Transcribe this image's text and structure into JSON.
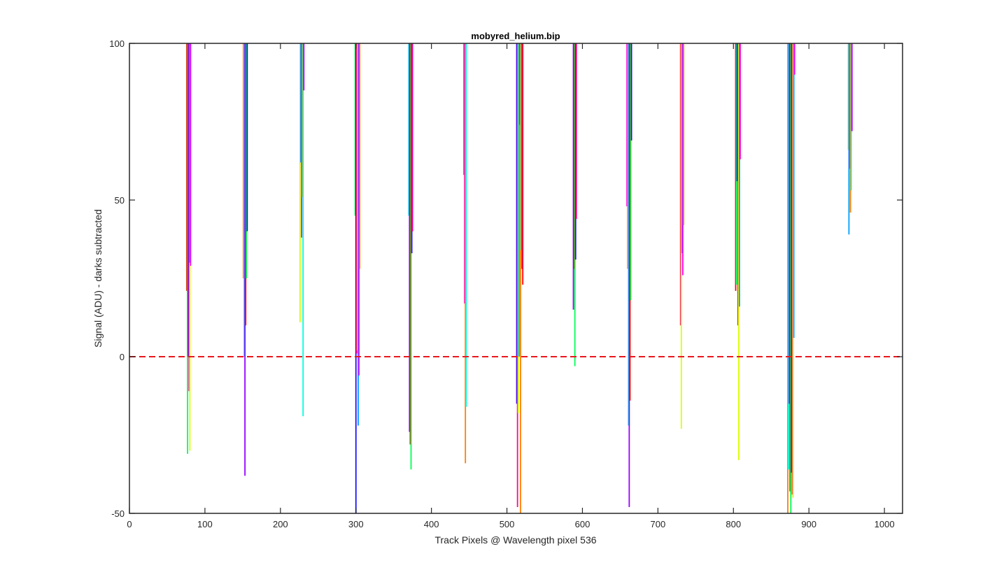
{
  "chart_data": {
    "type": "line",
    "title": "mobyred_helium.bip",
    "xlabel": "Track Pixels @ Wavelength pixel 536",
    "ylabel": "Signal (ADU) - darks subtracted",
    "xlim": [
      0,
      1024
    ],
    "ylim": [
      -50,
      100
    ],
    "xticks": [
      0,
      100,
      200,
      300,
      400,
      500,
      600,
      700,
      800,
      900,
      1000
    ],
    "yticks": [
      -50,
      0,
      50,
      100
    ],
    "grid": false,
    "legend": "none",
    "reference_line": {
      "y": 0,
      "style": "dashed",
      "color": "#e8171d"
    },
    "colors": [
      "#ff0000",
      "#ff7f00",
      "#d9ff00",
      "#00ff55",
      "#00ffdd",
      "#00a0ff",
      "#1a10ff",
      "#9a00ff",
      "#ff00ff",
      "#ff0a8c"
    ],
    "peaks": [
      {
        "x": 78,
        "lines": [
          [
            76,
            100,
            21
          ],
          [
            77,
            100,
            -31
          ],
          [
            78,
            100,
            0
          ],
          [
            79,
            100,
            -11
          ],
          [
            80,
            100,
            -30
          ],
          [
            80,
            100,
            30
          ],
          [
            81,
            100,
            29
          ]
        ]
      },
      {
        "x": 153,
        "lines": [
          [
            151,
            100,
            25
          ],
          [
            152,
            100,
            0
          ],
          [
            153,
            100,
            -38
          ],
          [
            154,
            100,
            10
          ],
          [
            155,
            100,
            25
          ],
          [
            156,
            100,
            40
          ]
        ]
      },
      {
        "x": 228,
        "lines": [
          [
            226,
            100,
            11
          ],
          [
            227,
            100,
            62
          ],
          [
            228,
            100,
            38
          ],
          [
            229,
            100,
            51
          ],
          [
            230,
            100,
            -19
          ],
          [
            231,
            100,
            85
          ]
        ]
      },
      {
        "x": 302,
        "lines": [
          [
            299,
            100,
            45
          ],
          [
            300,
            100,
            -50
          ],
          [
            301,
            100,
            1
          ],
          [
            302,
            100,
            2
          ],
          [
            303,
            100,
            -22
          ],
          [
            304,
            100,
            -6
          ],
          [
            305,
            100,
            28
          ]
        ]
      },
      {
        "x": 372,
        "lines": [
          [
            370,
            100,
            45
          ],
          [
            371,
            100,
            -24
          ],
          [
            372,
            100,
            -28
          ],
          [
            373,
            100,
            -36
          ],
          [
            374,
            100,
            33
          ],
          [
            375,
            100,
            40
          ]
        ]
      },
      {
        "x": 445,
        "lines": [
          [
            443,
            100,
            58
          ],
          [
            444,
            100,
            17
          ],
          [
            445,
            100,
            -34
          ],
          [
            446,
            100,
            -16
          ]
        ]
      },
      {
        "x": 517,
        "lines": [
          [
            513,
            100,
            -15
          ],
          [
            514,
            100,
            -48
          ],
          [
            515,
            100,
            -18
          ],
          [
            516,
            100,
            0
          ],
          [
            517,
            100,
            74
          ],
          [
            518,
            100,
            -50
          ],
          [
            519,
            100,
            34
          ],
          [
            520,
            100,
            28
          ],
          [
            521,
            100,
            23
          ]
        ]
      },
      {
        "x": 590,
        "lines": [
          [
            588,
            100,
            15
          ],
          [
            589,
            100,
            28
          ],
          [
            590,
            100,
            -3
          ],
          [
            591,
            100,
            31
          ],
          [
            592,
            100,
            44
          ]
        ]
      },
      {
        "x": 662,
        "lines": [
          [
            659,
            100,
            48
          ],
          [
            660,
            100,
            28
          ],
          [
            661,
            100,
            -22
          ],
          [
            662,
            100,
            -48
          ],
          [
            663,
            100,
            -14
          ],
          [
            664,
            100,
            18
          ],
          [
            665,
            100,
            69
          ]
        ]
      },
      {
        "x": 732,
        "lines": [
          [
            730,
            100,
            10
          ],
          [
            731,
            100,
            -23
          ],
          [
            732,
            100,
            33
          ],
          [
            733,
            100,
            26
          ],
          [
            734,
            100,
            42
          ]
        ]
      },
      {
        "x": 806,
        "lines": [
          [
            803,
            100,
            21
          ],
          [
            804,
            100,
            23
          ],
          [
            805,
            100,
            56
          ],
          [
            806,
            100,
            10
          ],
          [
            807,
            100,
            -33
          ],
          [
            808,
            100,
            16
          ],
          [
            809,
            100,
            63
          ]
        ]
      },
      {
        "x": 876,
        "lines": [
          [
            872,
            100,
            -50
          ],
          [
            873,
            100,
            -36
          ],
          [
            874,
            100,
            -15
          ],
          [
            875,
            100,
            -43
          ],
          [
            876,
            100,
            -50
          ],
          [
            877,
            100,
            -37
          ],
          [
            878,
            100,
            -44
          ],
          [
            879,
            100,
            -45
          ],
          [
            880,
            100,
            6
          ],
          [
            881,
            100,
            90
          ]
        ]
      },
      {
        "x": 955,
        "lines": [
          [
            952,
            100,
            66
          ],
          [
            953,
            100,
            39
          ],
          [
            954,
            100,
            60
          ],
          [
            955,
            100,
            46
          ],
          [
            956,
            100,
            53
          ],
          [
            957,
            100,
            72
          ]
        ]
      }
    ]
  }
}
